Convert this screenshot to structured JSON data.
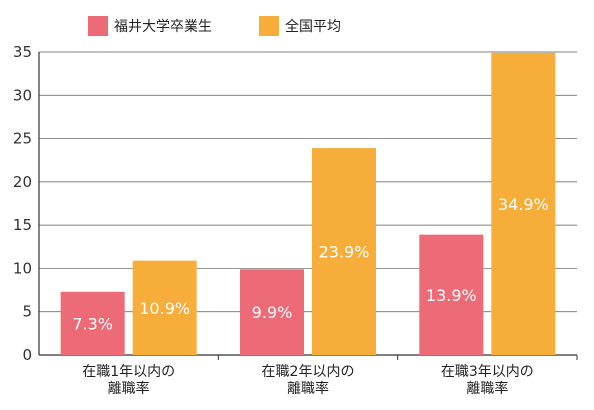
{
  "chart_data": {
    "type": "bar",
    "categories": [
      [
        "在職1年以内の",
        "離職率"
      ],
      [
        "在職2年以内の",
        "離職率"
      ],
      [
        "在職3年以内の",
        "離職率"
      ]
    ],
    "series": [
      {
        "name": "福井大学卒業生",
        "values": [
          7.3,
          9.9,
          13.9
        ],
        "labels": [
          "7.3%",
          "9.9%",
          "13.9%"
        ],
        "color": "#ec6b77"
      },
      {
        "name": "全国平均",
        "values": [
          10.9,
          23.9,
          34.9
        ],
        "labels": [
          "10.9%",
          "23.9%",
          "34.9%"
        ],
        "color": "#f6ad3a"
      }
    ],
    "yticks": [
      0,
      5,
      10,
      15,
      20,
      25,
      30,
      35
    ],
    "ylim": [
      0,
      35
    ],
    "grid": "horizontal",
    "legend": "top-left"
  }
}
